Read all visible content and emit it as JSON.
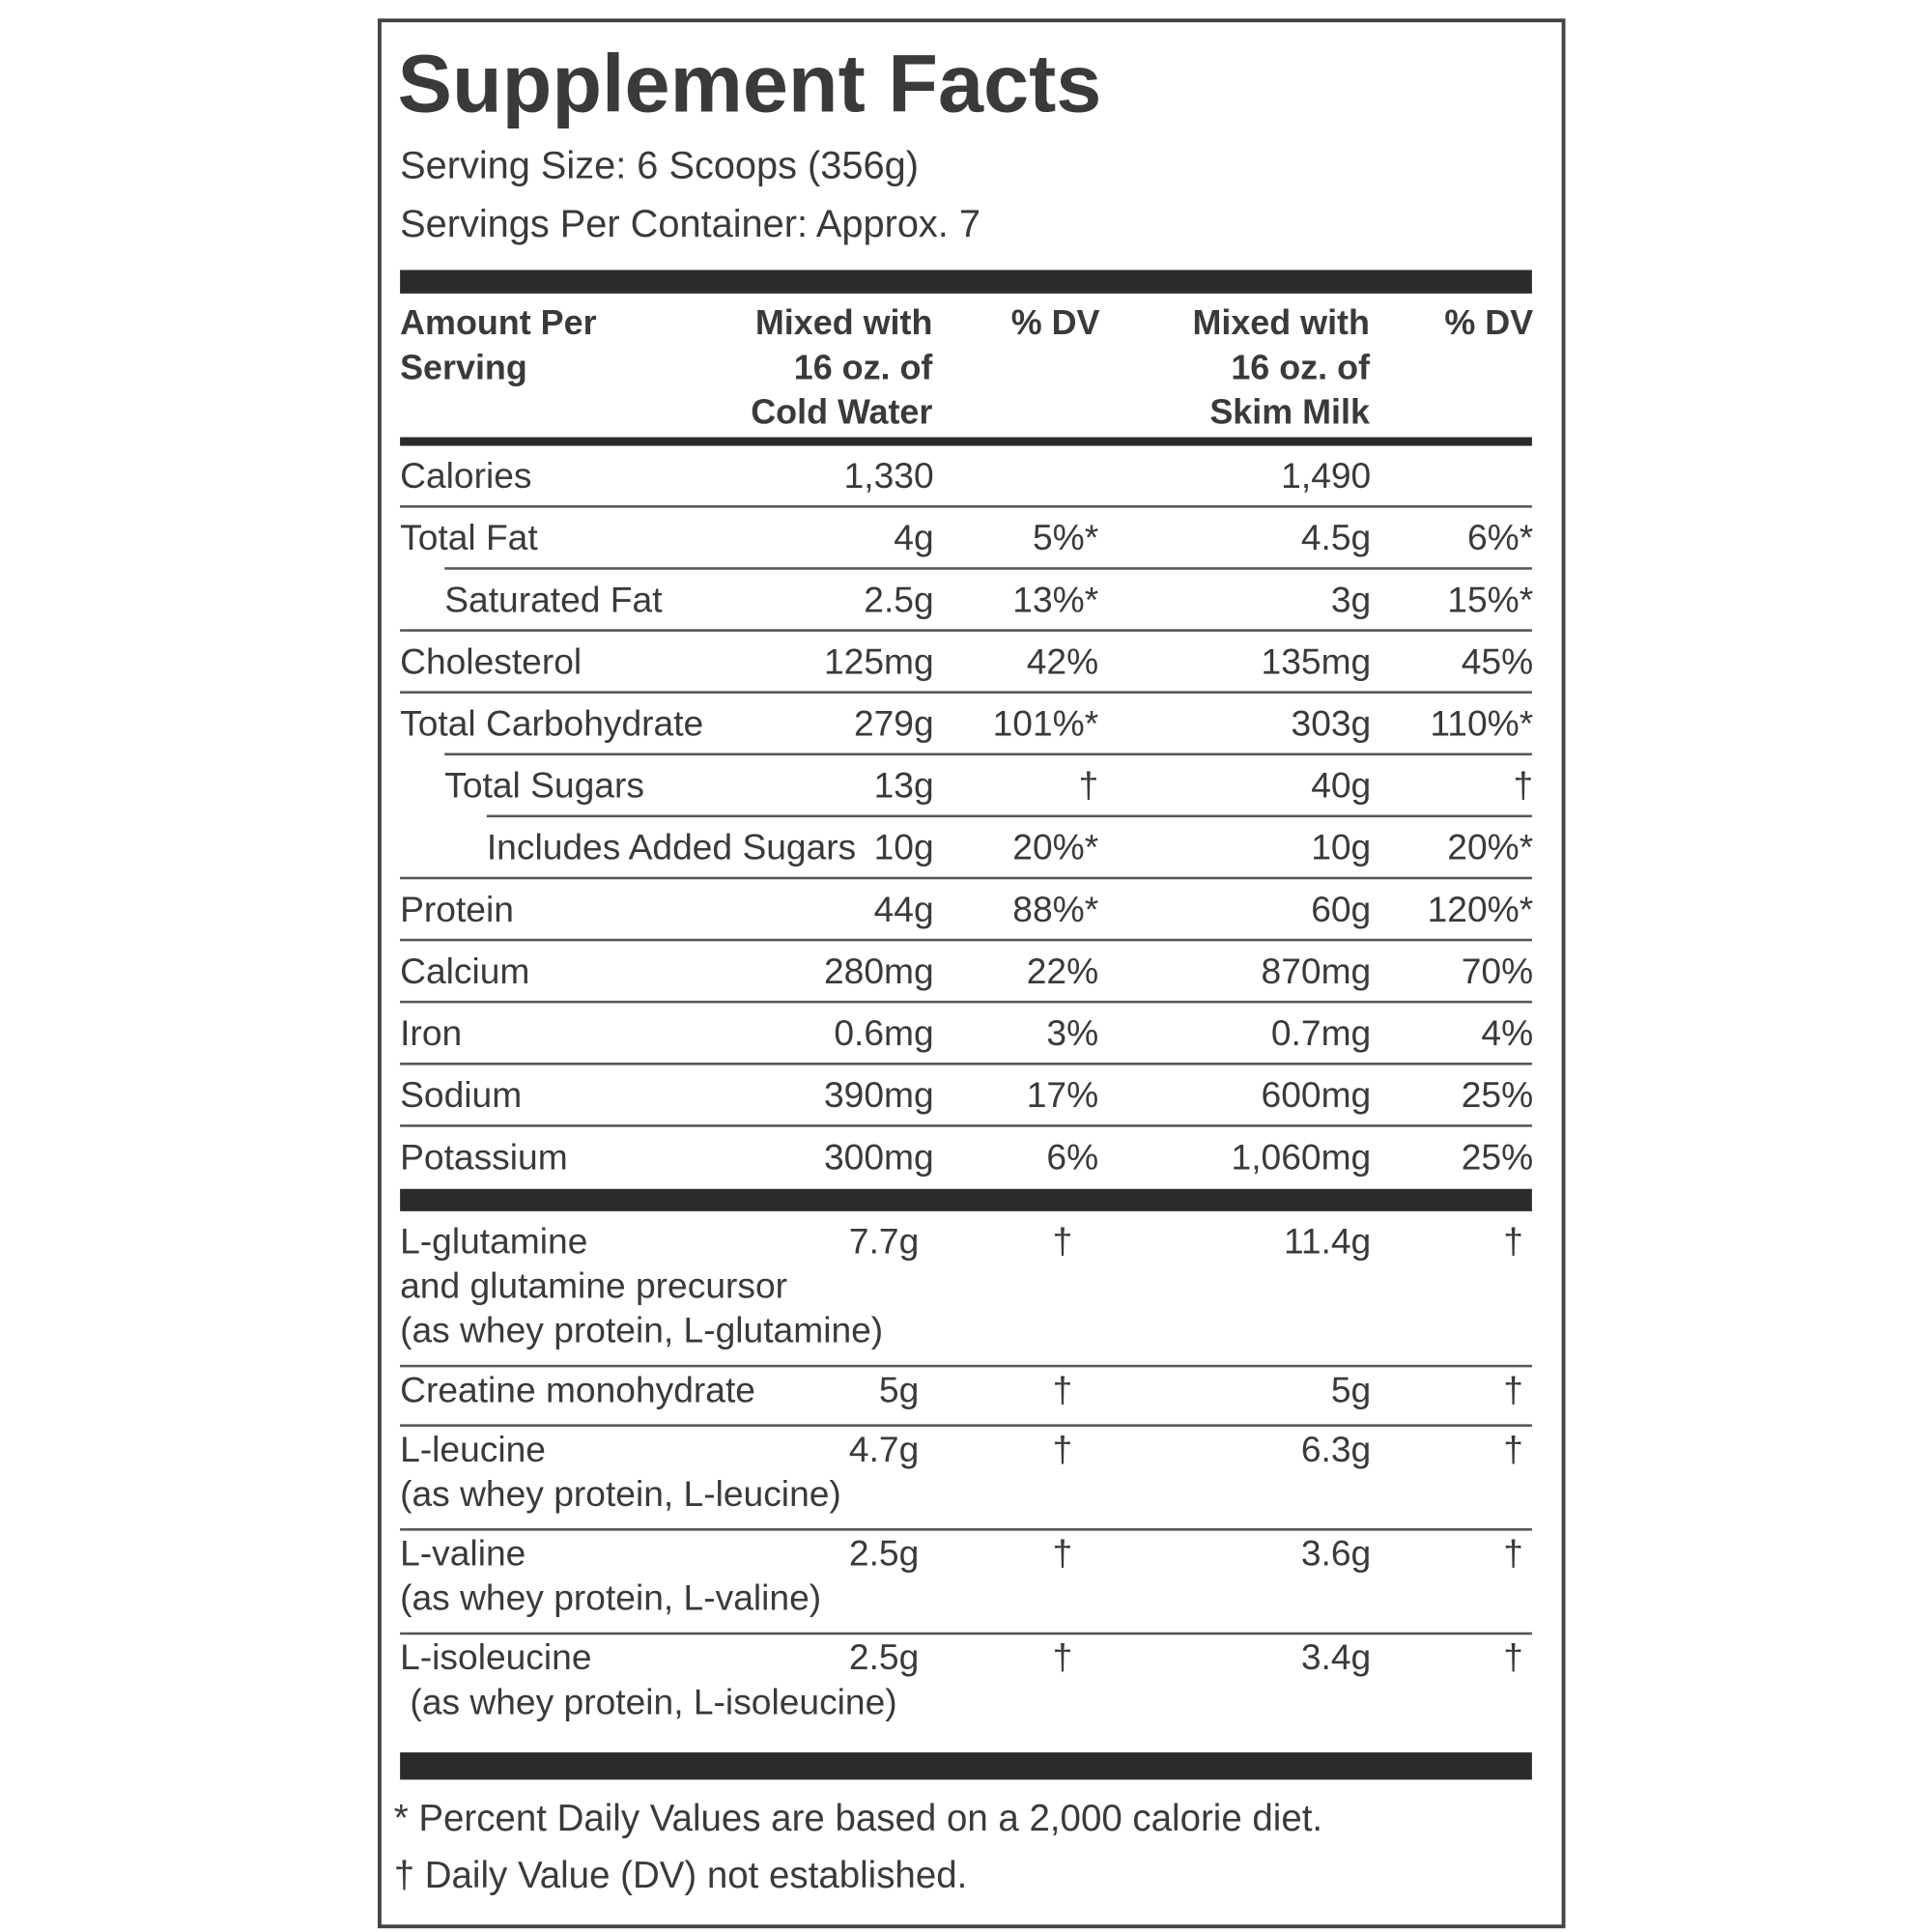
{
  "header": {
    "title": "Supplement Facts",
    "serving_size": "Serving Size: 6 Scoops (356g)",
    "servings_per_container": "Servings Per Container: Approx. 7"
  },
  "columns": [
    "Amount Per\nServing",
    "Mixed with\n16 oz. of\nCold Water",
    "% DV",
    "Mixed with\n16 oz. of\nSkim Milk",
    "% DV"
  ],
  "nutrients": [
    [
      "Calories",
      "1,330",
      "",
      "1,490",
      ""
    ],
    [
      "Total Fat",
      "4g",
      "5%*",
      "4.5g",
      "6%*"
    ],
    [
      "Saturated Fat",
      "2.5g",
      "13%*",
      "3g",
      "15%*"
    ],
    [
      "Cholesterol",
      "125mg",
      "42%",
      "135mg",
      "45%"
    ],
    [
      "Total Carbohydrate",
      "279g",
      "101%*",
      "303g",
      "110%*"
    ],
    [
      "Total Sugars",
      "13g",
      "†",
      "40g",
      "†"
    ],
    [
      "Includes Added Sugars",
      "10g",
      "20%*",
      "10g",
      "20%*"
    ],
    [
      "Protein",
      "44g",
      "88%*",
      "60g",
      "120%*"
    ],
    [
      "Calcium",
      "280mg",
      "22%",
      "870mg",
      "70%"
    ],
    [
      "Iron",
      "0.6mg",
      "3%",
      "0.7mg",
      "4%"
    ],
    [
      "Sodium",
      "390mg",
      "17%",
      "600mg",
      "25%"
    ],
    [
      "Potassium",
      "300mg",
      "6%",
      "1,060mg",
      "25%"
    ]
  ],
  "ingredients": [
    [
      "L-glutamine\nand glutamine precursor\n(as whey protein, L-glutamine)",
      "7.7g",
      "†",
      "11.4g",
      "†"
    ],
    [
      "Creatine monohydrate",
      "5g",
      "†",
      "5g",
      "†"
    ],
    [
      "L-leucine\n(as whey protein, L-leucine)",
      "4.7g",
      "†",
      "6.3g",
      "†"
    ],
    [
      "L-valine\n(as whey protein, L-valine)",
      "2.5g",
      "†",
      "3.6g",
      "†"
    ],
    [
      "L-isoleucine\n (as whey protein, L-isoleucine)",
      "2.5g",
      "†",
      "3.4g",
      "†"
    ]
  ],
  "footnotes": [
    "* Percent Daily Values are based on a 2,000 calorie diet.",
    "† Daily Value (DV) not established."
  ]
}
